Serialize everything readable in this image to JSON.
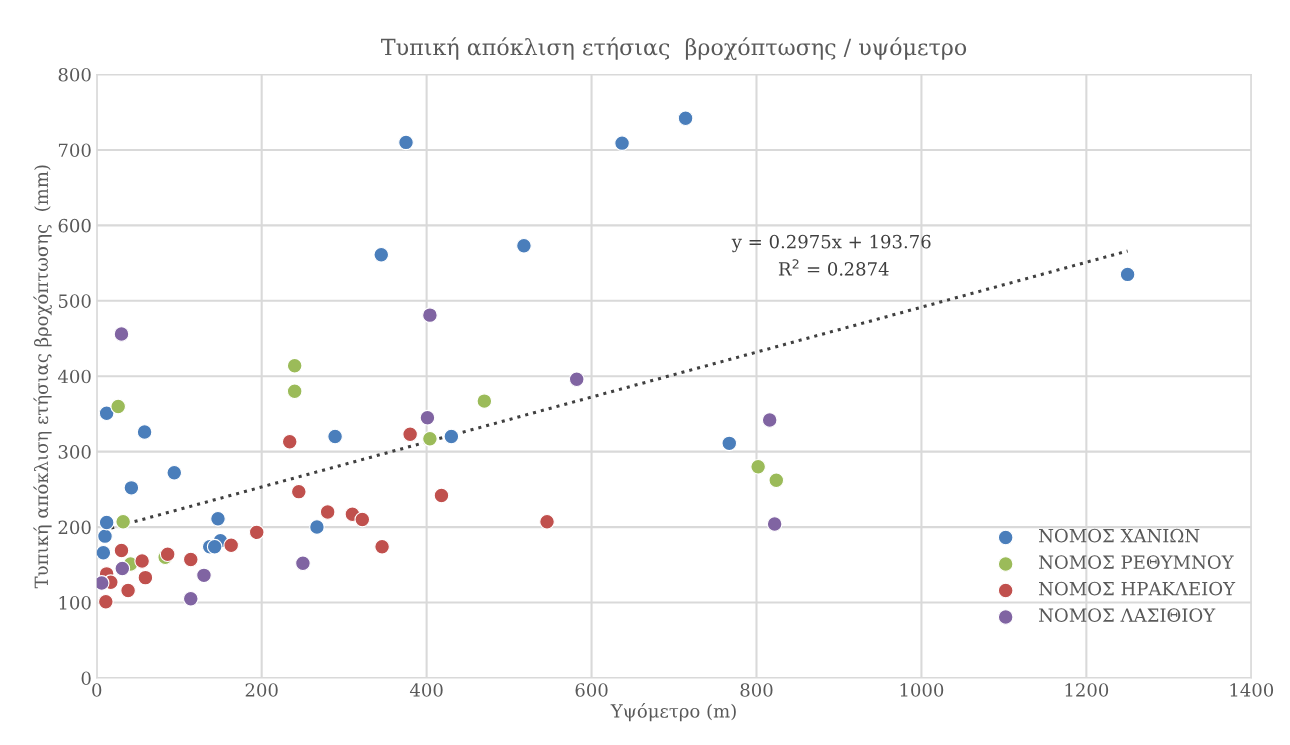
{
  "chart_data": {
    "type": "scatter",
    "title": "Τυπική απόκλιση ετήσιας  βροχόπτωσης / υψόμετρο",
    "xlabel": "Υψόμετρο (m)",
    "ylabel": "Τυπική απόκλιση ετήσιας βροχόπτωσης  (mm)",
    "xlim": [
      0,
      1400
    ],
    "xticks": [
      0,
      200,
      400,
      600,
      800,
      1000,
      1200,
      1400
    ],
    "ylim": [
      0,
      800
    ],
    "yticks": [
      0,
      100,
      200,
      300,
      400,
      500,
      600,
      700,
      800
    ],
    "grid": true,
    "legend": "bottom right",
    "marker": "circle",
    "annotations": [
      "y = 0.2975x + 193.76",
      "R$^{2}$ = 0.2874"
    ],
    "series": [
      {
        "name": "ΝΟΜΟΣ ΧΑΝΙΩΝ",
        "color": "#4a7ebb",
        "x": [
          8,
          10,
          12,
          12,
          58,
          42,
          94,
          147,
          150,
          137,
          143,
          267,
          289,
          345,
          375,
          430,
          518,
          637,
          714,
          767,
          1250
        ],
        "values": [
          166,
          188,
          206,
          351,
          326,
          252,
          272,
          211,
          182,
          174,
          174,
          200,
          320,
          561,
          710,
          320,
          573,
          709,
          742,
          311,
          535
        ]
      },
      {
        "name": "ΝΟΜΟΣ ΡΕΘΥΜΝΟΥ",
        "color": "#9bbb59",
        "x": [
          26,
          32,
          41,
          83,
          240,
          240,
          404,
          470,
          802,
          824
        ],
        "values": [
          360,
          207,
          151,
          160,
          414,
          380,
          317,
          367,
          280,
          262
        ]
      },
      {
        "name": "ΝΟΜΟΣ ΗΡΑΚΛΕΙΟΥ",
        "color": "#c0504d",
        "x": [
          12,
          17,
          11,
          30,
          38,
          55,
          59,
          86,
          114,
          163,
          194,
          234,
          245,
          280,
          310,
          322,
          346,
          380,
          418,
          546
        ],
        "values": [
          138,
          127,
          101,
          169,
          116,
          155,
          133,
          164,
          157,
          176,
          193,
          313,
          247,
          220,
          217,
          210,
          174,
          323,
          242,
          207
        ]
      },
      {
        "name": "ΝΟΜΟΣ ΛΑΣΙΘΙΟΥ",
        "color": "#8064a2",
        "x": [
          6,
          31,
          30,
          114,
          130,
          250,
          401,
          404,
          582,
          816,
          822
        ],
        "values": [
          126,
          145,
          456,
          105,
          136,
          152,
          345,
          481,
          396,
          342,
          204
        ]
      },
      {
        "type": "line",
        "color": "#404040",
        "line_style": "dotted",
        "marker": "none",
        "x": [
          8,
          1250
        ],
        "values": [
          196,
          566
        ]
      }
    ]
  }
}
